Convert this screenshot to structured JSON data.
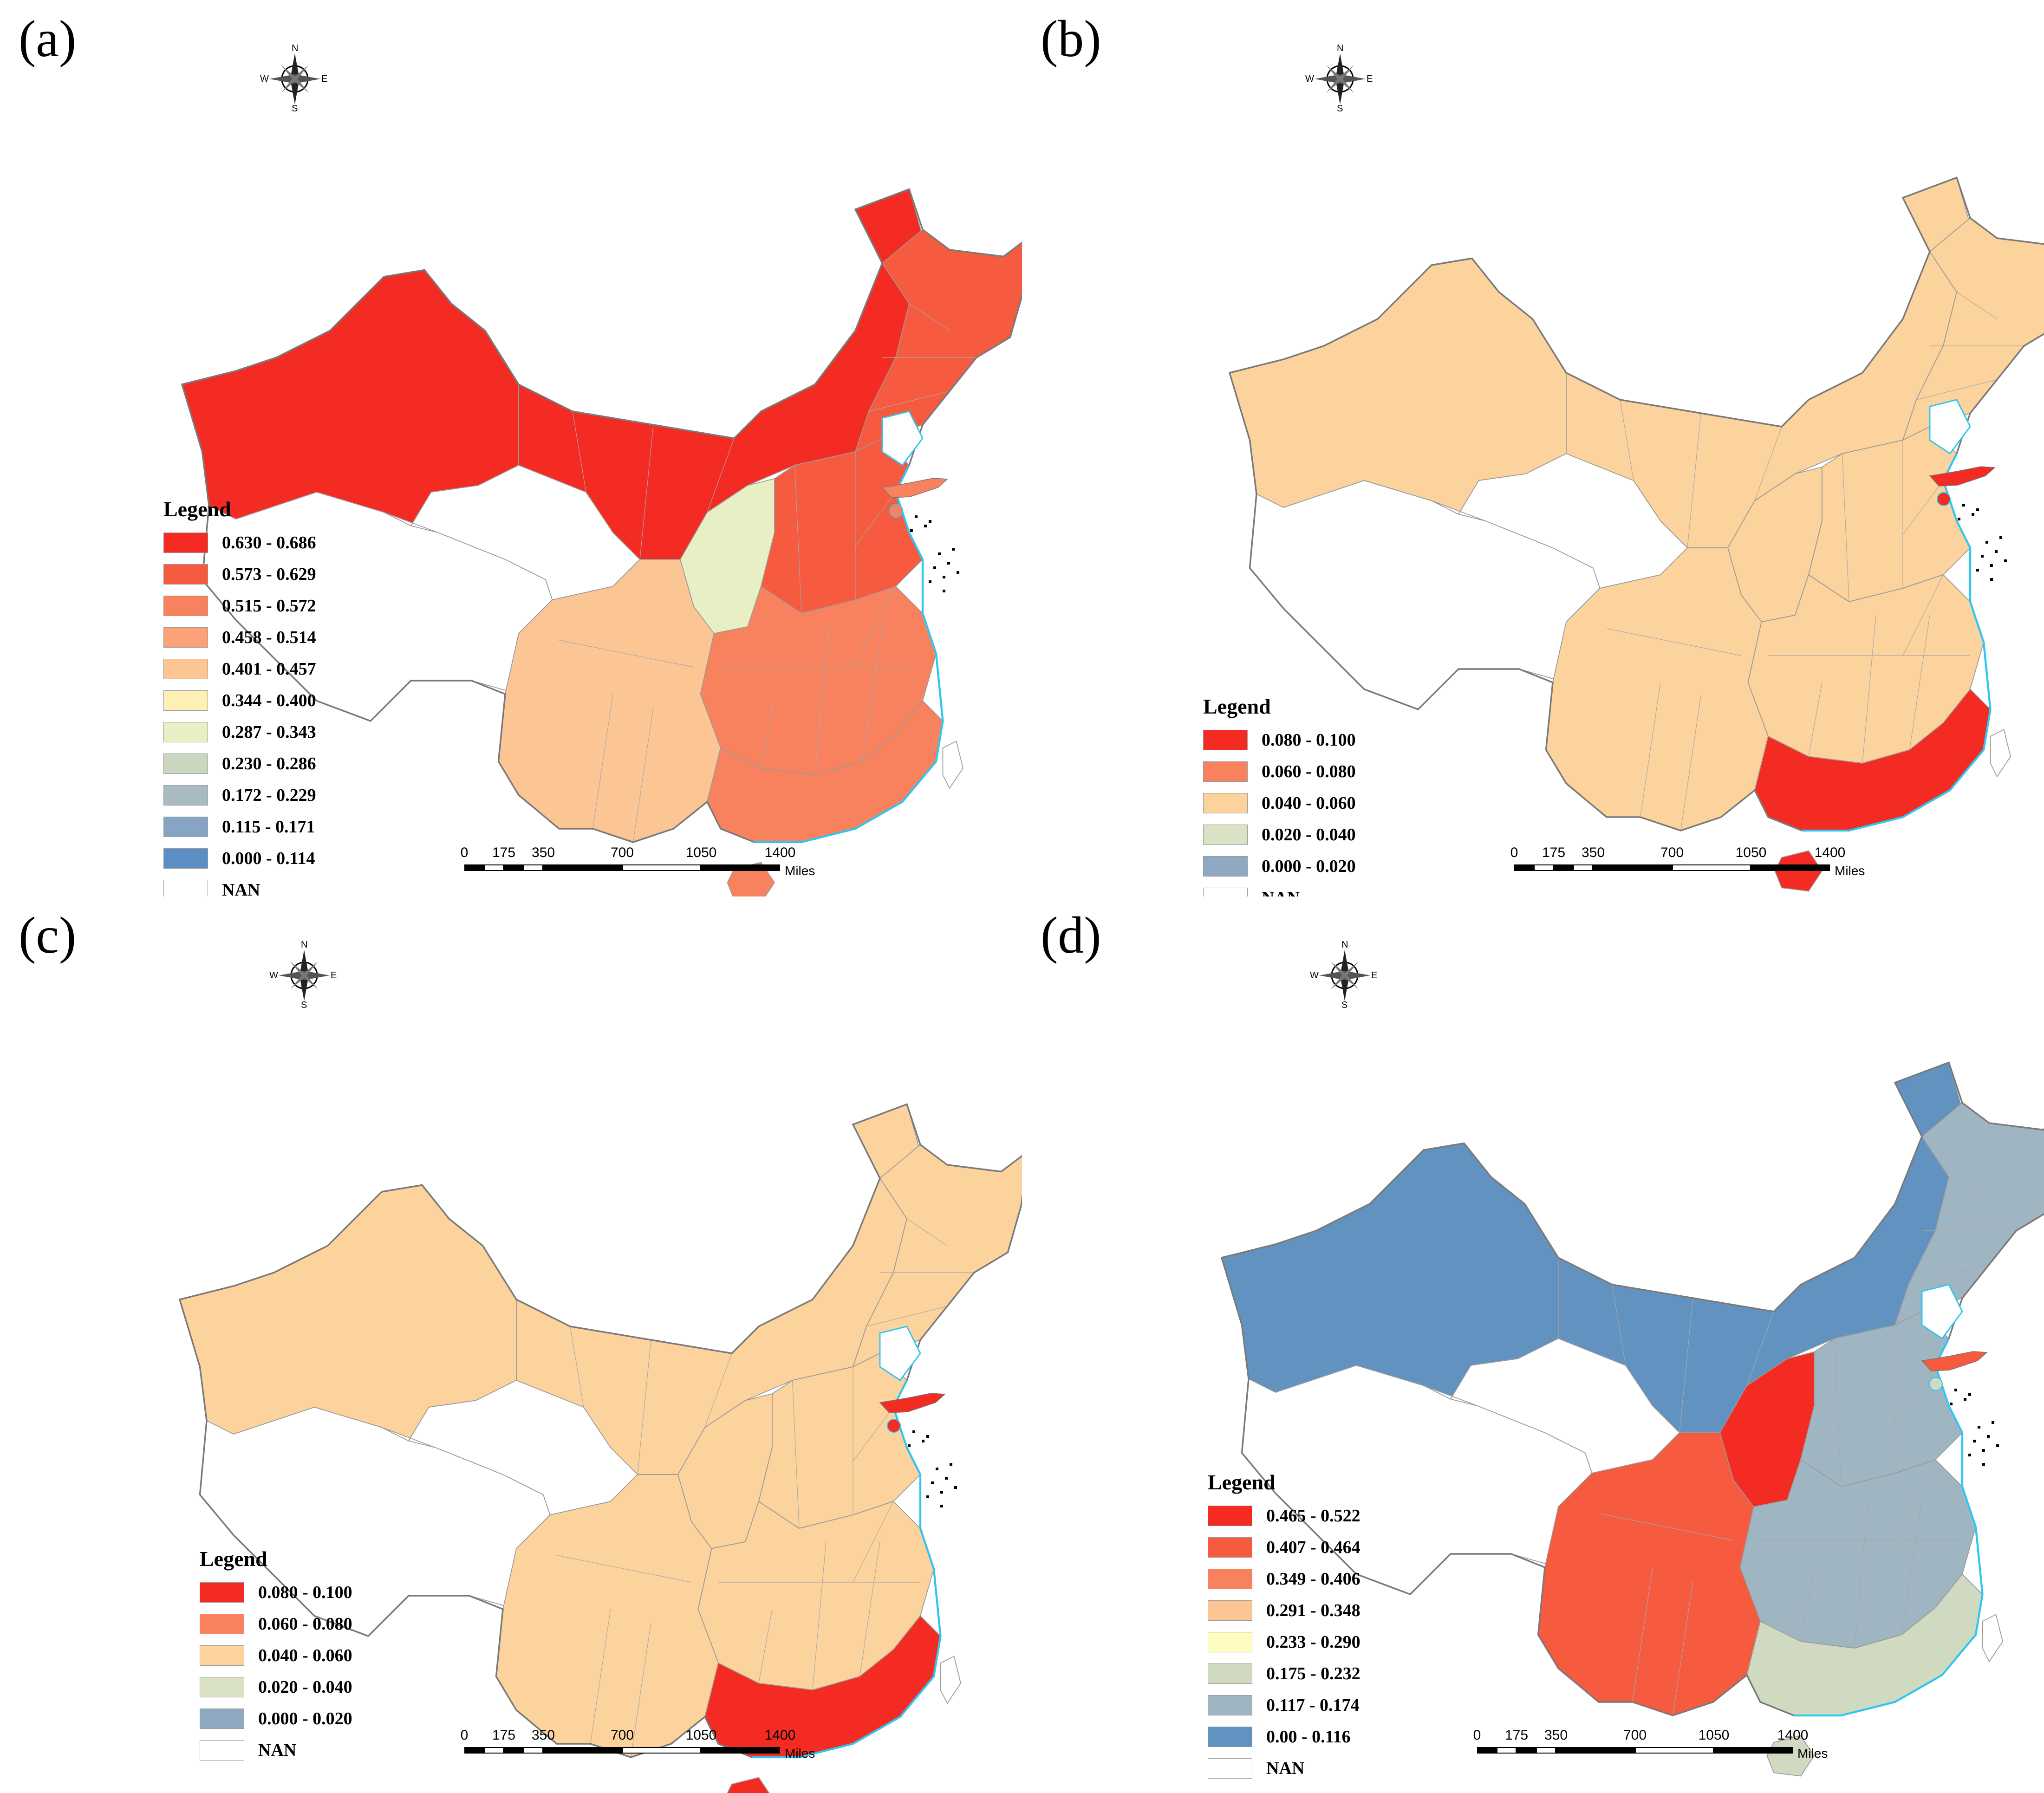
{
  "panels": [
    {
      "id": "a",
      "label": "(a)",
      "legend": {
        "title": "Legend",
        "classes": [
          {
            "range": "0.630 - 0.686",
            "color": "#F32B22"
          },
          {
            "range": "0.573 - 0.629",
            "color": "#F65A3F"
          },
          {
            "range": "0.515 - 0.572",
            "color": "#F9825E"
          },
          {
            "range": "0.458 - 0.514",
            "color": "#FBA278"
          },
          {
            "range": "0.401 - 0.457",
            "color": "#FCC594"
          },
          {
            "range": "0.344 - 0.400",
            "color": "#FEF0B4"
          },
          {
            "range": "0.287 - 0.343",
            "color": "#E8EFC4"
          },
          {
            "range": "0.230 - 0.286",
            "color": "#CBD6C0"
          },
          {
            "range": "0.172 - 0.229",
            "color": "#A8BBC2"
          },
          {
            "range": "0.115 - 0.171",
            "color": "#87A4C2"
          },
          {
            "range": "0.000 - 0.114",
            "color": "#5B8FC4"
          },
          {
            "range": "NAN",
            "color": "#FFFFFF"
          }
        ]
      },
      "region_colors": {
        "xinjiang": "#F32B22",
        "tibet": "#FFFFFF",
        "qinghai": "#FFFFFF",
        "inner_north": "#F32B22",
        "northeast": "#F65A3F",
        "shaanxi_strip": "#E8EFC4",
        "north_china": "#F65A3F",
        "east_central": "#F9825E",
        "southwest": "#FCC594",
        "guangdong_fujian": "#F9825E",
        "hainan": "#F9825E",
        "taiwan": "#FFFFFF",
        "inset": "#F9825E"
      }
    },
    {
      "id": "b",
      "label": "(b)",
      "legend": {
        "title": "Legend",
        "classes": [
          {
            "range": "0.080 - 0.100",
            "color": "#F32B22"
          },
          {
            "range": "0.060 - 0.080",
            "color": "#F9825E"
          },
          {
            "range": "0.040 - 0.060",
            "color": "#FCD39C"
          },
          {
            "range": "0.020 - 0.040",
            "color": "#D9E2C4"
          },
          {
            "range": "0.000 - 0.020",
            "color": "#8EA9C1"
          },
          {
            "range": "NAN",
            "color": "#FFFFFF"
          }
        ]
      },
      "region_colors": {
        "xinjiang": "#FCD39C",
        "tibet": "#FFFFFF",
        "qinghai": "#FFFFFF",
        "inner_north": "#FCD39C",
        "northeast": "#FCD39C",
        "shaanxi_strip": "#FCD39C",
        "north_china": "#FCD39C",
        "east_central": "#FCD39C",
        "southwest": "#FCD39C",
        "guangdong_fujian": "#F32B22",
        "hainan": "#F32B22",
        "taiwan": "#FFFFFF",
        "inset": "#F32B22"
      }
    },
    {
      "id": "c",
      "label": "(c)",
      "legend": {
        "title": "Legend",
        "classes": [
          {
            "range": "0.080 - 0.100",
            "color": "#F32B22"
          },
          {
            "range": "0.060 - 0.080",
            "color": "#F9825E"
          },
          {
            "range": "0.040 - 0.060",
            "color": "#FCD39C"
          },
          {
            "range": "0.020 - 0.040",
            "color": "#D9E2C4"
          },
          {
            "range": "0.000 - 0.020",
            "color": "#8EA9C1"
          },
          {
            "range": "NAN",
            "color": "#FFFFFF"
          }
        ]
      },
      "region_colors": {
        "xinjiang": "#FCD39C",
        "tibet": "#FFFFFF",
        "qinghai": "#FFFFFF",
        "inner_north": "#FCD39C",
        "northeast": "#FCD39C",
        "shaanxi_strip": "#FCD39C",
        "north_china": "#FCD39C",
        "east_central": "#FCD39C",
        "southwest": "#FCD39C",
        "guangdong_fujian": "#F32B22",
        "hainan": "#F32B22",
        "taiwan": "#FFFFFF",
        "inset": "#F32B22"
      }
    },
    {
      "id": "d",
      "label": "(d)",
      "legend": {
        "title": "Legend",
        "classes": [
          {
            "range": "0.465 - 0.522",
            "color": "#F32B22"
          },
          {
            "range": "0.407 - 0.464",
            "color": "#F65A3F"
          },
          {
            "range": "0.349 - 0.406",
            "color": "#F9825E"
          },
          {
            "range": "0.291 - 0.348",
            "color": "#FCC594"
          },
          {
            "range": "0.233 - 0.290",
            "color": "#FFFCC0"
          },
          {
            "range": "0.175 - 0.232",
            "color": "#CFDAC0"
          },
          {
            "range": "0.117 - 0.174",
            "color": "#9FB5C2"
          },
          {
            "range": "0.00 - 0.116",
            "color": "#6292C0"
          },
          {
            "range": "NAN",
            "color": "#FFFFFF"
          }
        ]
      },
      "region_colors": {
        "xinjiang": "#6292C0",
        "tibet": "#FFFFFF",
        "qinghai": "#FFFFFF",
        "inner_north": "#6292C0",
        "northeast": "#9FB5C2",
        "shaanxi_strip": "#F32B22",
        "north_china": "#9FB5C2",
        "east_central": "#9FB5C2",
        "southwest": "#F65A3F",
        "guangdong_fujian": "#CFDAC0",
        "hainan": "#CFDAC0",
        "taiwan": "#FFFFFF",
        "inset": "#F65A3F"
      }
    }
  ],
  "scale_bar": {
    "ticks": [
      "0",
      "175",
      "350",
      "700",
      "1050",
      "1400"
    ],
    "unit": "Miles"
  },
  "compass": {
    "n": "N",
    "s": "S",
    "e": "E",
    "w": "W"
  },
  "colors": {
    "coast": "#30C6F0",
    "border": "#9A9A9A",
    "outline": "#7A7A7A"
  }
}
